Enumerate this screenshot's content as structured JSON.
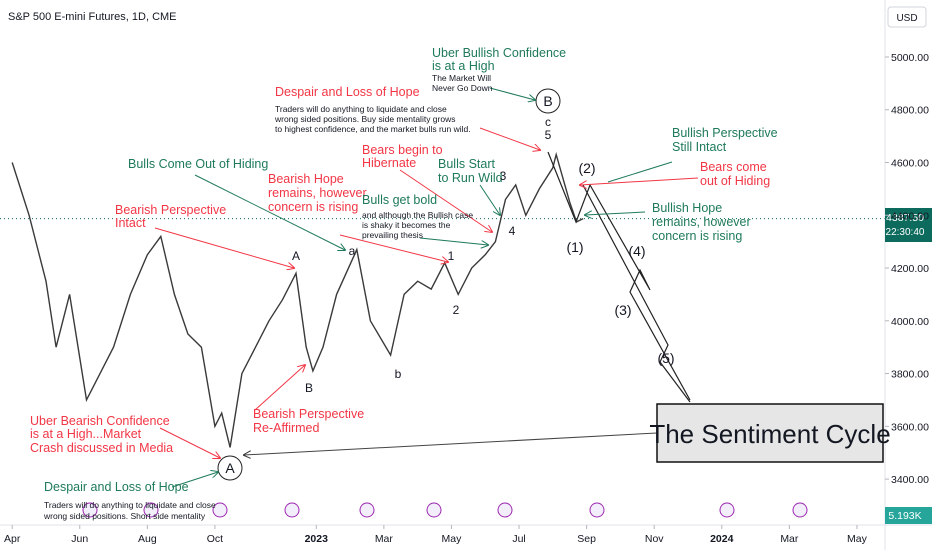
{
  "chart_data": {
    "type": "line",
    "title": "S&P 500 E-mini Futures, 1D, CME",
    "currency": "USD",
    "x": [
      0,
      0.5,
      1.0,
      1.3,
      1.7,
      2.2,
      2.6,
      3.0,
      3.5,
      4.0,
      4.4,
      4.8,
      5.2,
      5.6,
      6.0,
      6.2,
      6.45,
      6.8,
      7.2,
      7.6,
      8.0,
      8.4,
      8.7,
      8.9,
      9.2,
      9.6,
      10.2,
      10.6,
      11.2,
      11.6,
      12.0,
      12.4,
      12.8,
      13.2,
      13.6,
      14.0,
      14.3,
      14.6,
      14.9,
      15.2,
      15.6,
      16.0,
      16.1,
      16.5,
      16.7,
      16.9
    ],
    "values": [
      4600,
      4400,
      4150,
      3900,
      4100,
      3700,
      3800,
      3900,
      4100,
      4250,
      4320,
      4100,
      3950,
      3900,
      3600,
      3650,
      3520,
      3800,
      3900,
      4000,
      4080,
      4180,
      3900,
      3810,
      3900,
      4100,
      4270,
      4000,
      3870,
      4100,
      4150,
      4120,
      4220,
      4100,
      4200,
      4250,
      4300,
      4460,
      4515,
      4400,
      4500,
      4580,
      4630,
      4450,
      4375,
      4387.5
    ],
    "color": "#3a3a3a",
    "xlim": [
      -0.36,
      25.83
    ],
    "xticks": [
      {
        "value": 0,
        "label": "Apr"
      },
      {
        "value": 2,
        "label": "Jun"
      },
      {
        "value": 4,
        "label": "Aug"
      },
      {
        "value": 6,
        "label": "Oct"
      },
      {
        "value": 9,
        "label": "2023"
      },
      {
        "value": 11,
        "label": "Mar"
      },
      {
        "value": 13,
        "label": "May"
      },
      {
        "value": 15,
        "label": "Jul"
      },
      {
        "value": 17,
        "label": "Sep"
      },
      {
        "value": 19,
        "label": "Nov"
      },
      {
        "value": 21,
        "label": "2024"
      },
      {
        "value": 23,
        "label": "Mar"
      },
      {
        "value": 25,
        "label": "May"
      }
    ],
    "ylim": [
      3226,
      5216
    ],
    "yticks": [
      {
        "value": 3400,
        "label": "3400.00"
      },
      {
        "value": 3600,
        "label": "3600.00"
      },
      {
        "value": 3800,
        "label": "3800.00"
      },
      {
        "value": 4000,
        "label": "4000.00"
      },
      {
        "value": 4200,
        "label": "4200.00"
      },
      {
        "value": 4400,
        "label": "4400.00"
      },
      {
        "value": 4600,
        "label": "4600.00"
      },
      {
        "value": 4800,
        "label": "4800.00"
      },
      {
        "value": 5000,
        "label": "5000.00"
      }
    ],
    "last_price": {
      "value": 4387.5,
      "label": "4387.50"
    },
    "countdown": "22:30:40",
    "volume_label": "5.193K",
    "annotations": [
      "Uber Bullish Confidence",
      "is at a High",
      "The Market Will",
      "Never Go Down",
      "Despair and Loss of Hope",
      "Traders will do anything to liquidate and close",
      "wrong sided positions.  Buy side mentality grows",
      "to highest confidence, and the market bulls run wild.",
      "B",
      "c",
      "5",
      "Bullish Perspective",
      "Still Intact",
      "Bears begin to",
      "Hibernate",
      "Bulls Come Out of Hiding",
      "Bulls Start",
      "to Run Wild",
      "3",
      "(2)",
      "Bears come",
      "out of Hiding",
      "Bearish Hope",
      "remains, however",
      "concern is rising",
      "Bearish Perspective",
      "Intact",
      "Bulls get bold",
      "and although the Bullish case",
      "is shaky it becomes the",
      "prevailing thesis",
      "Bullish Hope",
      "remains, however",
      "concern is rising",
      "4",
      "(1)",
      "(4)",
      "A",
      "a",
      "1",
      "2",
      "(3)",
      "(5)",
      "B",
      "b",
      "Bearish Perspective",
      "Re-Affirmed",
      "Uber Bearish Confidence",
      "is at a High...Market",
      "Crash discussed in Media",
      "A",
      "Despair and Loss of Hope",
      "Traders will do anything to liquidate and close",
      "wrong sided positions.  Short side mentality",
      "The Sentiment Cycle"
    ]
  }
}
